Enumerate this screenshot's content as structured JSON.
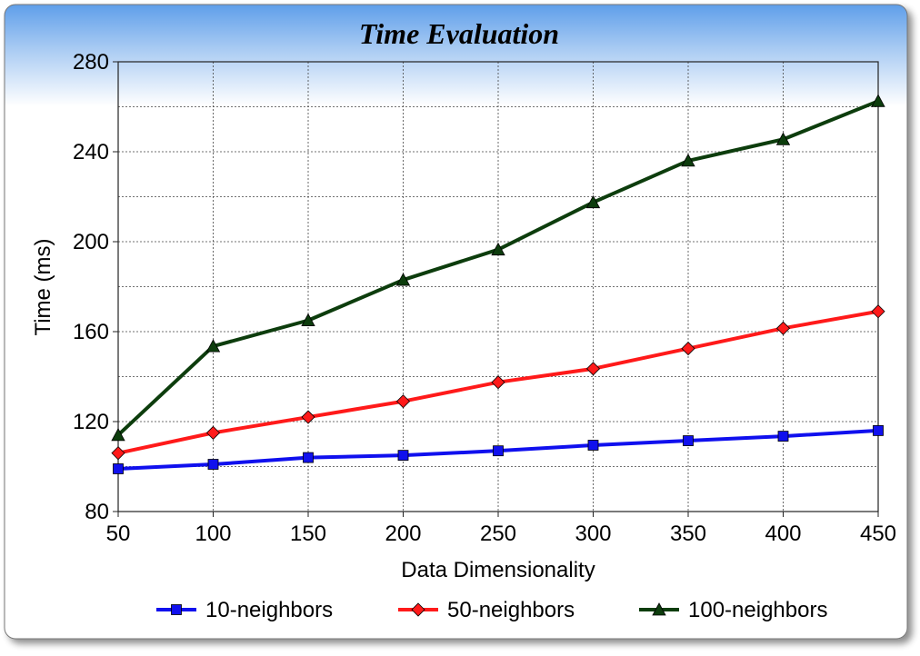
{
  "chart_data": {
    "type": "line",
    "title": "Time Evaluation",
    "xlabel": "Data Dimensionality",
    "ylabel": "Time (ms)",
    "x": [
      50,
      100,
      150,
      200,
      250,
      300,
      350,
      400,
      450
    ],
    "xlim": [
      50,
      450
    ],
    "ylim": [
      80,
      280
    ],
    "yticks": [
      80,
      120,
      160,
      200,
      240,
      280
    ],
    "grid": true,
    "legend_position": "bottom",
    "series": [
      {
        "name": "10-neighbors",
        "color": "#1010ee",
        "marker": "square",
        "values": [
          99,
          101,
          104,
          105,
          107,
          109.5,
          111.5,
          113.5,
          116
        ]
      },
      {
        "name": "50-neighbors",
        "color": "#ff1a1a",
        "marker": "diamond",
        "values": [
          106,
          115,
          122,
          129,
          137.5,
          143.5,
          152.5,
          161.5,
          169
        ]
      },
      {
        "name": "100-neighbors",
        "color": "#0d3d0d",
        "marker": "triangle",
        "values": [
          114,
          153.5,
          165,
          183,
          196.5,
          217.5,
          236,
          245.5,
          262.5
        ]
      }
    ]
  }
}
